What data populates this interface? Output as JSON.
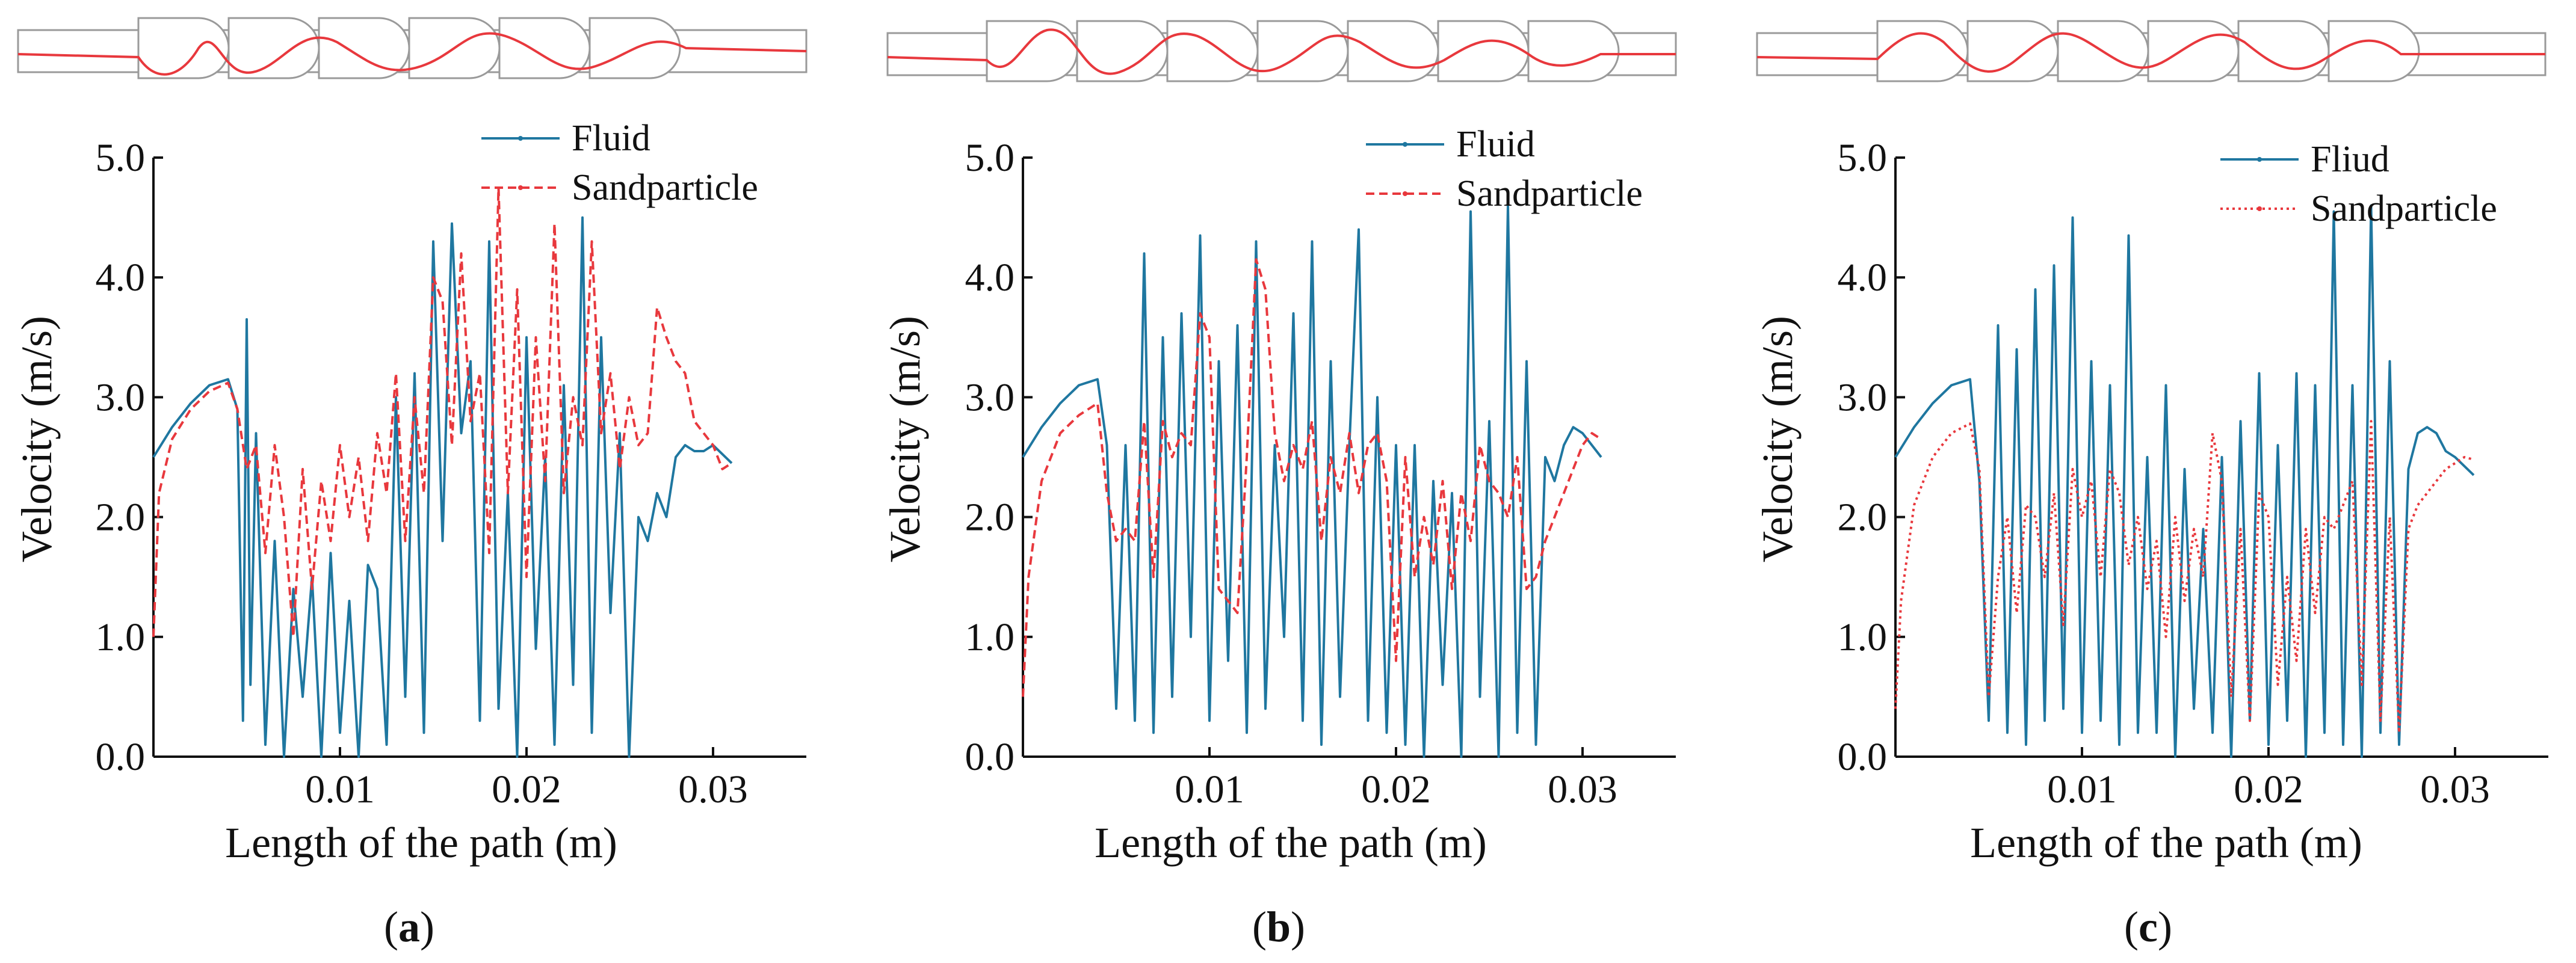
{
  "colors": {
    "fluid": "#1f77a0",
    "sand": "#e8383d",
    "axis": "#111111",
    "channel": "#9a9a9a",
    "background": "#ffffff"
  },
  "chart_data": [
    {
      "type": "line",
      "panel_label": "a",
      "title": "",
      "xlabel": "Length of the path (m)",
      "ylabel": "Velocity (m/s)",
      "xlim": [
        0,
        0.035
      ],
      "ylim": [
        0,
        5.0
      ],
      "x_ticks": [
        0.01,
        0.02,
        0.03
      ],
      "x_tick_labels": [
        "0.01",
        "0.02",
        "0.03"
      ],
      "y_ticks": [
        0,
        1,
        2,
        3,
        4,
        5
      ],
      "y_tick_labels": [
        "0.0",
        "1.0",
        "2.0",
        "3.0",
        "4.0",
        "5.0"
      ],
      "grid": false,
      "legend_position": "top-right",
      "series": [
        {
          "name": "Fluid",
          "style": "solid",
          "color": "#1f77a0",
          "x": [
            0.0,
            0.001,
            0.002,
            0.003,
            0.004,
            0.0045,
            0.0048,
            0.005,
            0.0052,
            0.0055,
            0.006,
            0.0065,
            0.007,
            0.0075,
            0.008,
            0.0085,
            0.009,
            0.0095,
            0.01,
            0.0105,
            0.011,
            0.0115,
            0.012,
            0.0125,
            0.013,
            0.0135,
            0.014,
            0.0145,
            0.015,
            0.0155,
            0.016,
            0.0165,
            0.017,
            0.0175,
            0.018,
            0.0185,
            0.019,
            0.0195,
            0.02,
            0.0205,
            0.021,
            0.0215,
            0.022,
            0.0225,
            0.023,
            0.0235,
            0.024,
            0.0245,
            0.025,
            0.0255,
            0.026,
            0.0265,
            0.027,
            0.0275,
            0.028,
            0.0285,
            0.029,
            0.0295,
            0.03,
            0.031
          ],
          "y": [
            2.5,
            2.75,
            2.95,
            3.1,
            3.15,
            2.9,
            0.3,
            3.65,
            0.6,
            2.7,
            0.1,
            1.8,
            0.0,
            1.4,
            0.5,
            1.5,
            0.0,
            1.7,
            0.2,
            1.3,
            0.0,
            1.6,
            1.4,
            0.1,
            3.0,
            0.5,
            3.2,
            0.2,
            4.3,
            1.8,
            4.45,
            2.7,
            3.3,
            0.3,
            4.3,
            0.4,
            2.2,
            0.0,
            3.5,
            0.9,
            2.5,
            0.1,
            3.1,
            0.6,
            4.5,
            0.2,
            3.5,
            1.2,
            2.7,
            0.0,
            2.0,
            1.8,
            2.2,
            2.0,
            2.5,
            2.6,
            2.55,
            2.55,
            2.6,
            2.45
          ]
        },
        {
          "name": "Sandparticle",
          "style": "dashed",
          "color": "#e8383d",
          "x": [
            0.0,
            0.0003,
            0.001,
            0.002,
            0.003,
            0.004,
            0.0045,
            0.005,
            0.0055,
            0.006,
            0.0065,
            0.007,
            0.0075,
            0.008,
            0.0085,
            0.009,
            0.0095,
            0.01,
            0.0105,
            0.011,
            0.0115,
            0.012,
            0.0125,
            0.013,
            0.0135,
            0.014,
            0.0145,
            0.015,
            0.0155,
            0.016,
            0.0165,
            0.017,
            0.0175,
            0.018,
            0.0185,
            0.019,
            0.0195,
            0.02,
            0.0205,
            0.021,
            0.0215,
            0.022,
            0.0225,
            0.023,
            0.0235,
            0.024,
            0.0245,
            0.025,
            0.0255,
            0.026,
            0.0265,
            0.027,
            0.0275,
            0.028,
            0.0285,
            0.029,
            0.0295,
            0.03,
            0.0305,
            0.031
          ],
          "y": [
            1.0,
            2.2,
            2.65,
            2.9,
            3.05,
            3.12,
            2.9,
            2.4,
            2.6,
            1.7,
            2.6,
            2.0,
            1.0,
            2.4,
            1.4,
            2.3,
            1.8,
            2.6,
            2.0,
            2.5,
            1.8,
            2.7,
            2.2,
            3.2,
            1.8,
            3.0,
            2.2,
            4.0,
            3.8,
            2.6,
            4.2,
            2.8,
            3.2,
            1.7,
            4.75,
            2.2,
            3.9,
            1.5,
            3.5,
            2.3,
            4.45,
            2.2,
            3.0,
            2.6,
            4.3,
            2.7,
            3.2,
            2.4,
            3.0,
            2.6,
            2.7,
            3.75,
            3.5,
            3.3,
            3.2,
            2.8,
            2.7,
            2.6,
            2.4,
            2.45
          ]
        }
      ]
    },
    {
      "type": "line",
      "panel_label": "b",
      "title": "",
      "xlabel": "Length of the path (m)",
      "ylabel": "Velocity (m/s)",
      "xlim": [
        0,
        0.035
      ],
      "ylim": [
        0,
        5.0
      ],
      "x_ticks": [
        0.01,
        0.02,
        0.03
      ],
      "x_tick_labels": [
        "0.01",
        "0.02",
        "0.03"
      ],
      "y_ticks": [
        0,
        1,
        2,
        3,
        4,
        5
      ],
      "y_tick_labels": [
        "0.0",
        "1.0",
        "2.0",
        "3.0",
        "4.0",
        "5.0"
      ],
      "grid": false,
      "legend_position": "top-right",
      "series": [
        {
          "name": "Fluid",
          "style": "solid",
          "color": "#1f77a0",
          "x": [
            0.0,
            0.001,
            0.002,
            0.003,
            0.004,
            0.0045,
            0.005,
            0.0055,
            0.006,
            0.0065,
            0.007,
            0.0075,
            0.008,
            0.0085,
            0.009,
            0.0095,
            0.01,
            0.0105,
            0.011,
            0.0115,
            0.012,
            0.0125,
            0.013,
            0.0135,
            0.014,
            0.0145,
            0.015,
            0.0155,
            0.016,
            0.0165,
            0.017,
            0.0175,
            0.018,
            0.0185,
            0.019,
            0.0195,
            0.02,
            0.0205,
            0.021,
            0.0215,
            0.022,
            0.0225,
            0.023,
            0.0235,
            0.024,
            0.0245,
            0.025,
            0.0255,
            0.026,
            0.0265,
            0.027,
            0.0275,
            0.028,
            0.0285,
            0.029,
            0.0295,
            0.03,
            0.031
          ],
          "y": [
            2.5,
            2.75,
            2.95,
            3.1,
            3.15,
            2.6,
            0.4,
            2.6,
            0.3,
            4.2,
            0.2,
            3.5,
            0.5,
            3.7,
            1.0,
            4.35,
            0.3,
            3.3,
            0.8,
            3.6,
            0.2,
            4.3,
            0.4,
            2.6,
            1.0,
            3.7,
            0.3,
            4.3,
            0.1,
            3.3,
            0.5,
            2.6,
            4.4,
            0.3,
            3.0,
            0.2,
            2.6,
            0.1,
            2.6,
            0.0,
            2.3,
            0.6,
            2.2,
            0.0,
            4.55,
            0.5,
            2.8,
            0.0,
            4.6,
            0.2,
            3.3,
            0.1,
            2.5,
            2.3,
            2.6,
            2.75,
            2.7,
            2.5
          ]
        },
        {
          "name": "Sandparticle",
          "style": "dashed",
          "color": "#e8383d",
          "x": [
            0.0,
            0.0003,
            0.001,
            0.002,
            0.003,
            0.004,
            0.0045,
            0.005,
            0.0055,
            0.006,
            0.0065,
            0.007,
            0.0075,
            0.008,
            0.0085,
            0.009,
            0.0095,
            0.01,
            0.0105,
            0.011,
            0.0115,
            0.012,
            0.0125,
            0.013,
            0.0135,
            0.014,
            0.0145,
            0.015,
            0.0155,
            0.016,
            0.0165,
            0.017,
            0.0175,
            0.018,
            0.0185,
            0.019,
            0.0195,
            0.02,
            0.0205,
            0.021,
            0.0215,
            0.022,
            0.0225,
            0.023,
            0.0235,
            0.024,
            0.0245,
            0.025,
            0.0255,
            0.026,
            0.0265,
            0.027,
            0.0275,
            0.028,
            0.0285,
            0.029,
            0.0295,
            0.03,
            0.0305,
            0.031
          ],
          "y": [
            0.5,
            1.5,
            2.3,
            2.7,
            2.85,
            2.95,
            2.2,
            1.8,
            1.9,
            1.8,
            2.8,
            1.5,
            2.8,
            2.5,
            2.7,
            2.6,
            3.7,
            3.5,
            1.4,
            1.3,
            1.2,
            2.5,
            4.15,
            3.9,
            2.7,
            2.3,
            2.6,
            2.4,
            2.8,
            1.8,
            2.5,
            2.2,
            2.7,
            2.2,
            2.6,
            2.7,
            2.3,
            0.8,
            2.5,
            1.5,
            2.0,
            1.6,
            2.3,
            1.4,
            2.2,
            1.8,
            2.6,
            2.3,
            2.2,
            2.0,
            2.5,
            1.4,
            1.5,
            1.8,
            2.0,
            2.2,
            2.4,
            2.6,
            2.7,
            2.65
          ]
        }
      ]
    },
    {
      "type": "line",
      "panel_label": "c",
      "title": "",
      "xlabel": "Length of the path (m)",
      "ylabel": "Velocity (m/s)",
      "xlim": [
        0,
        0.035
      ],
      "ylim": [
        0,
        5.0
      ],
      "x_ticks": [
        0.01,
        0.02,
        0.03
      ],
      "x_tick_labels": [
        "0.01",
        "0.02",
        "0.03"
      ],
      "y_ticks": [
        0,
        1,
        2,
        3,
        4,
        5
      ],
      "y_tick_labels": [
        "0.0",
        "1.0",
        "2.0",
        "3.0",
        "4.0",
        "5.0"
      ],
      "grid": false,
      "legend_position": "top-right",
      "series": [
        {
          "name": "Fliud",
          "style": "solid",
          "color": "#1f77a0",
          "x": [
            0.0,
            0.001,
            0.002,
            0.003,
            0.004,
            0.0045,
            0.005,
            0.0055,
            0.006,
            0.0065,
            0.007,
            0.0075,
            0.008,
            0.0085,
            0.009,
            0.0095,
            0.01,
            0.0105,
            0.011,
            0.0115,
            0.012,
            0.0125,
            0.013,
            0.0135,
            0.014,
            0.0145,
            0.015,
            0.0155,
            0.016,
            0.0165,
            0.017,
            0.0175,
            0.018,
            0.0185,
            0.019,
            0.0195,
            0.02,
            0.0205,
            0.021,
            0.0215,
            0.022,
            0.0225,
            0.023,
            0.0235,
            0.024,
            0.0245,
            0.025,
            0.0255,
            0.026,
            0.0265,
            0.027,
            0.0275,
            0.028,
            0.0285,
            0.029,
            0.0295,
            0.03,
            0.031
          ],
          "y": [
            2.5,
            2.75,
            2.95,
            3.1,
            3.15,
            2.3,
            0.3,
            3.6,
            0.2,
            3.4,
            0.1,
            3.9,
            0.3,
            4.1,
            0.4,
            4.5,
            0.2,
            3.3,
            0.3,
            3.1,
            0.1,
            4.35,
            0.2,
            2.5,
            0.2,
            3.1,
            0.0,
            2.4,
            0.4,
            1.9,
            0.2,
            2.5,
            0.0,
            2.8,
            0.3,
            3.2,
            0.1,
            2.6,
            0.3,
            3.2,
            0.0,
            3.1,
            0.2,
            4.55,
            0.1,
            3.1,
            0.0,
            4.6,
            0.2,
            3.3,
            0.1,
            2.4,
            2.7,
            2.75,
            2.7,
            2.55,
            2.5,
            2.35
          ]
        },
        {
          "name": "Sandparticle",
          "style": "dotted",
          "color": "#e8383d",
          "x": [
            0.0,
            0.0003,
            0.001,
            0.002,
            0.003,
            0.004,
            0.0045,
            0.005,
            0.0055,
            0.006,
            0.0065,
            0.007,
            0.0075,
            0.008,
            0.0085,
            0.009,
            0.0095,
            0.01,
            0.0105,
            0.011,
            0.0115,
            0.012,
            0.0125,
            0.013,
            0.0135,
            0.014,
            0.0145,
            0.015,
            0.0155,
            0.016,
            0.0165,
            0.017,
            0.0175,
            0.018,
            0.0185,
            0.019,
            0.0195,
            0.02,
            0.0205,
            0.021,
            0.0215,
            0.022,
            0.0225,
            0.023,
            0.0235,
            0.024,
            0.0245,
            0.025,
            0.0255,
            0.026,
            0.0265,
            0.027,
            0.0275,
            0.028,
            0.0285,
            0.029,
            0.0295,
            0.03,
            0.0305,
            0.031
          ],
          "y": [
            0.4,
            1.3,
            2.1,
            2.5,
            2.7,
            2.78,
            2.4,
            0.5,
            1.5,
            2.0,
            1.2,
            2.1,
            2.0,
            1.5,
            2.2,
            1.1,
            2.4,
            2.0,
            2.3,
            1.5,
            2.4,
            2.2,
            1.6,
            2.0,
            1.4,
            1.8,
            1.0,
            2.0,
            1.3,
            1.9,
            1.5,
            2.7,
            2.3,
            0.5,
            1.9,
            0.3,
            2.2,
            2.0,
            0.6,
            1.5,
            0.8,
            1.9,
            1.2,
            2.0,
            1.9,
            2.1,
            2.3,
            0.6,
            2.8,
            0.3,
            2.0,
            0.2,
            1.9,
            2.1,
            2.2,
            2.3,
            2.4,
            2.45,
            2.5,
            2.48
          ]
        }
      ]
    }
  ]
}
